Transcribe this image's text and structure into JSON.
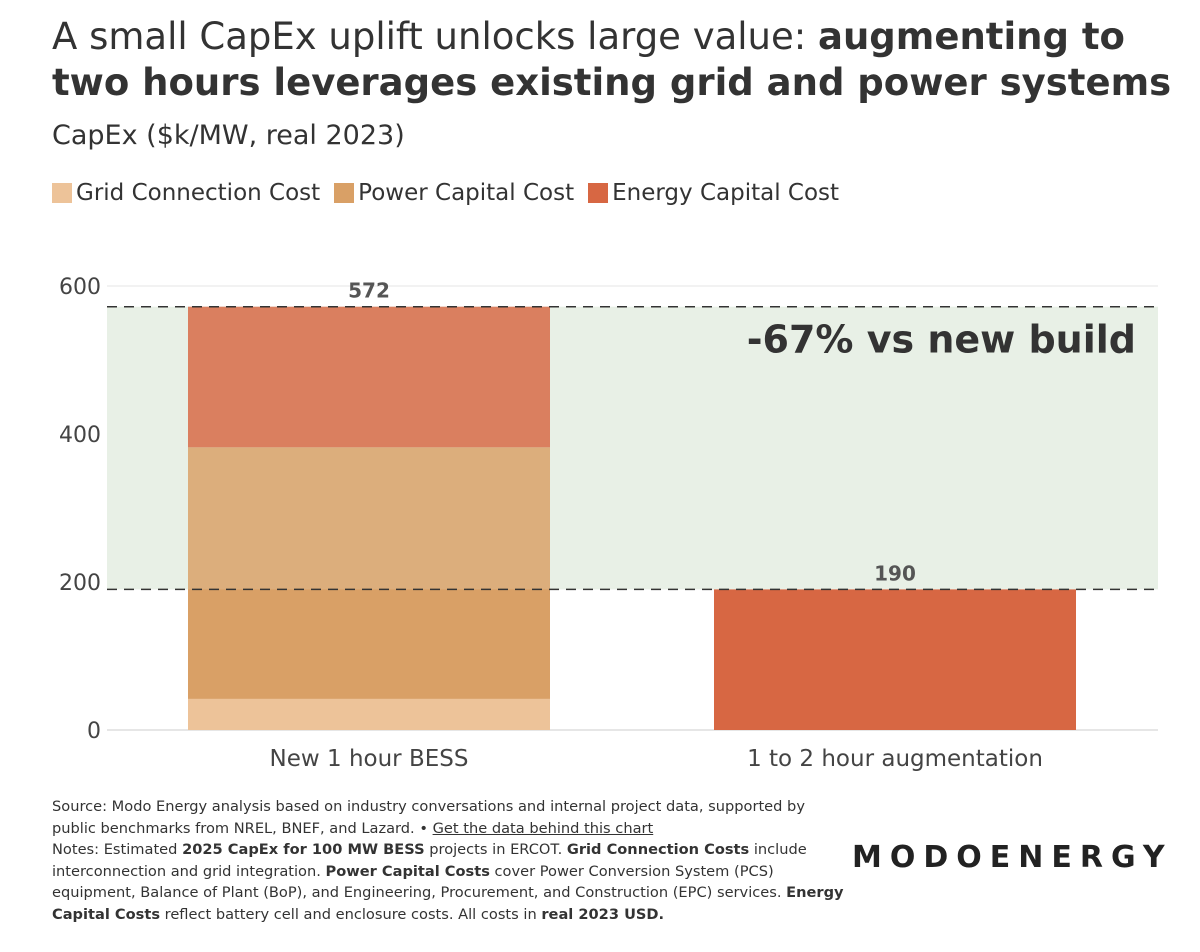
{
  "title": {
    "light": "A small CapEx uplift unlocks large value: ",
    "bold": "augmenting to two hours leverages existing grid and power systems"
  },
  "subtitle": "CapEx ($k/MW, real 2023)",
  "legend": [
    {
      "label": "Grid Connection Cost",
      "color": "#EDC399"
    },
    {
      "label": "Power Capital Cost",
      "color": "#D9A066"
    },
    {
      "label": "Energy Capital Cost",
      "color": "#D76743"
    }
  ],
  "chart_data": {
    "type": "bar",
    "stacked": true,
    "categories": [
      "New 1 hour BESS",
      "1 to 2 hour augmentation"
    ],
    "series": [
      {
        "name": "Grid Connection Cost",
        "values": [
          42,
          0
        ]
      },
      {
        "name": "Power Capital Cost",
        "values": [
          340,
          0
        ]
      },
      {
        "name": "Energy Capital Cost",
        "values": [
          190,
          190
        ]
      }
    ],
    "totals": [
      "572",
      "190"
    ],
    "yticks": [
      "0",
      "200",
      "400",
      "600"
    ],
    "ylim": [
      0,
      600
    ],
    "shaded_band": [
      190,
      572
    ],
    "annotation": "-67% vs new build",
    "xlabel": "",
    "ylabel": ""
  },
  "footer": {
    "source": "Source: Modo Energy analysis based on industry conversations and internal project data, supported by public benchmarks from NREL, BNEF, and Lazard. • ",
    "link": "Get the data behind this chart",
    "notes_1": "Notes: Estimated ",
    "notes_b1": "2025 CapEx for 100 MW BESS",
    "notes_2": " projects in ERCOT. ",
    "notes_b2": "Grid Connection Costs",
    "notes_3": " include interconnection and grid integration. ",
    "notes_b3": "Power Capital Costs",
    "notes_4": " cover Power Conversion System (PCS) equipment, Balance of Plant (BoP), and Engineering, Procurement, and Construction (EPC) services. ",
    "notes_b4": "Energy Capital Costs",
    "notes_5": " reflect battery cell and enclosure costs. All costs in ",
    "notes_b5": "real 2023 USD."
  },
  "logo": "MODOENERGY"
}
